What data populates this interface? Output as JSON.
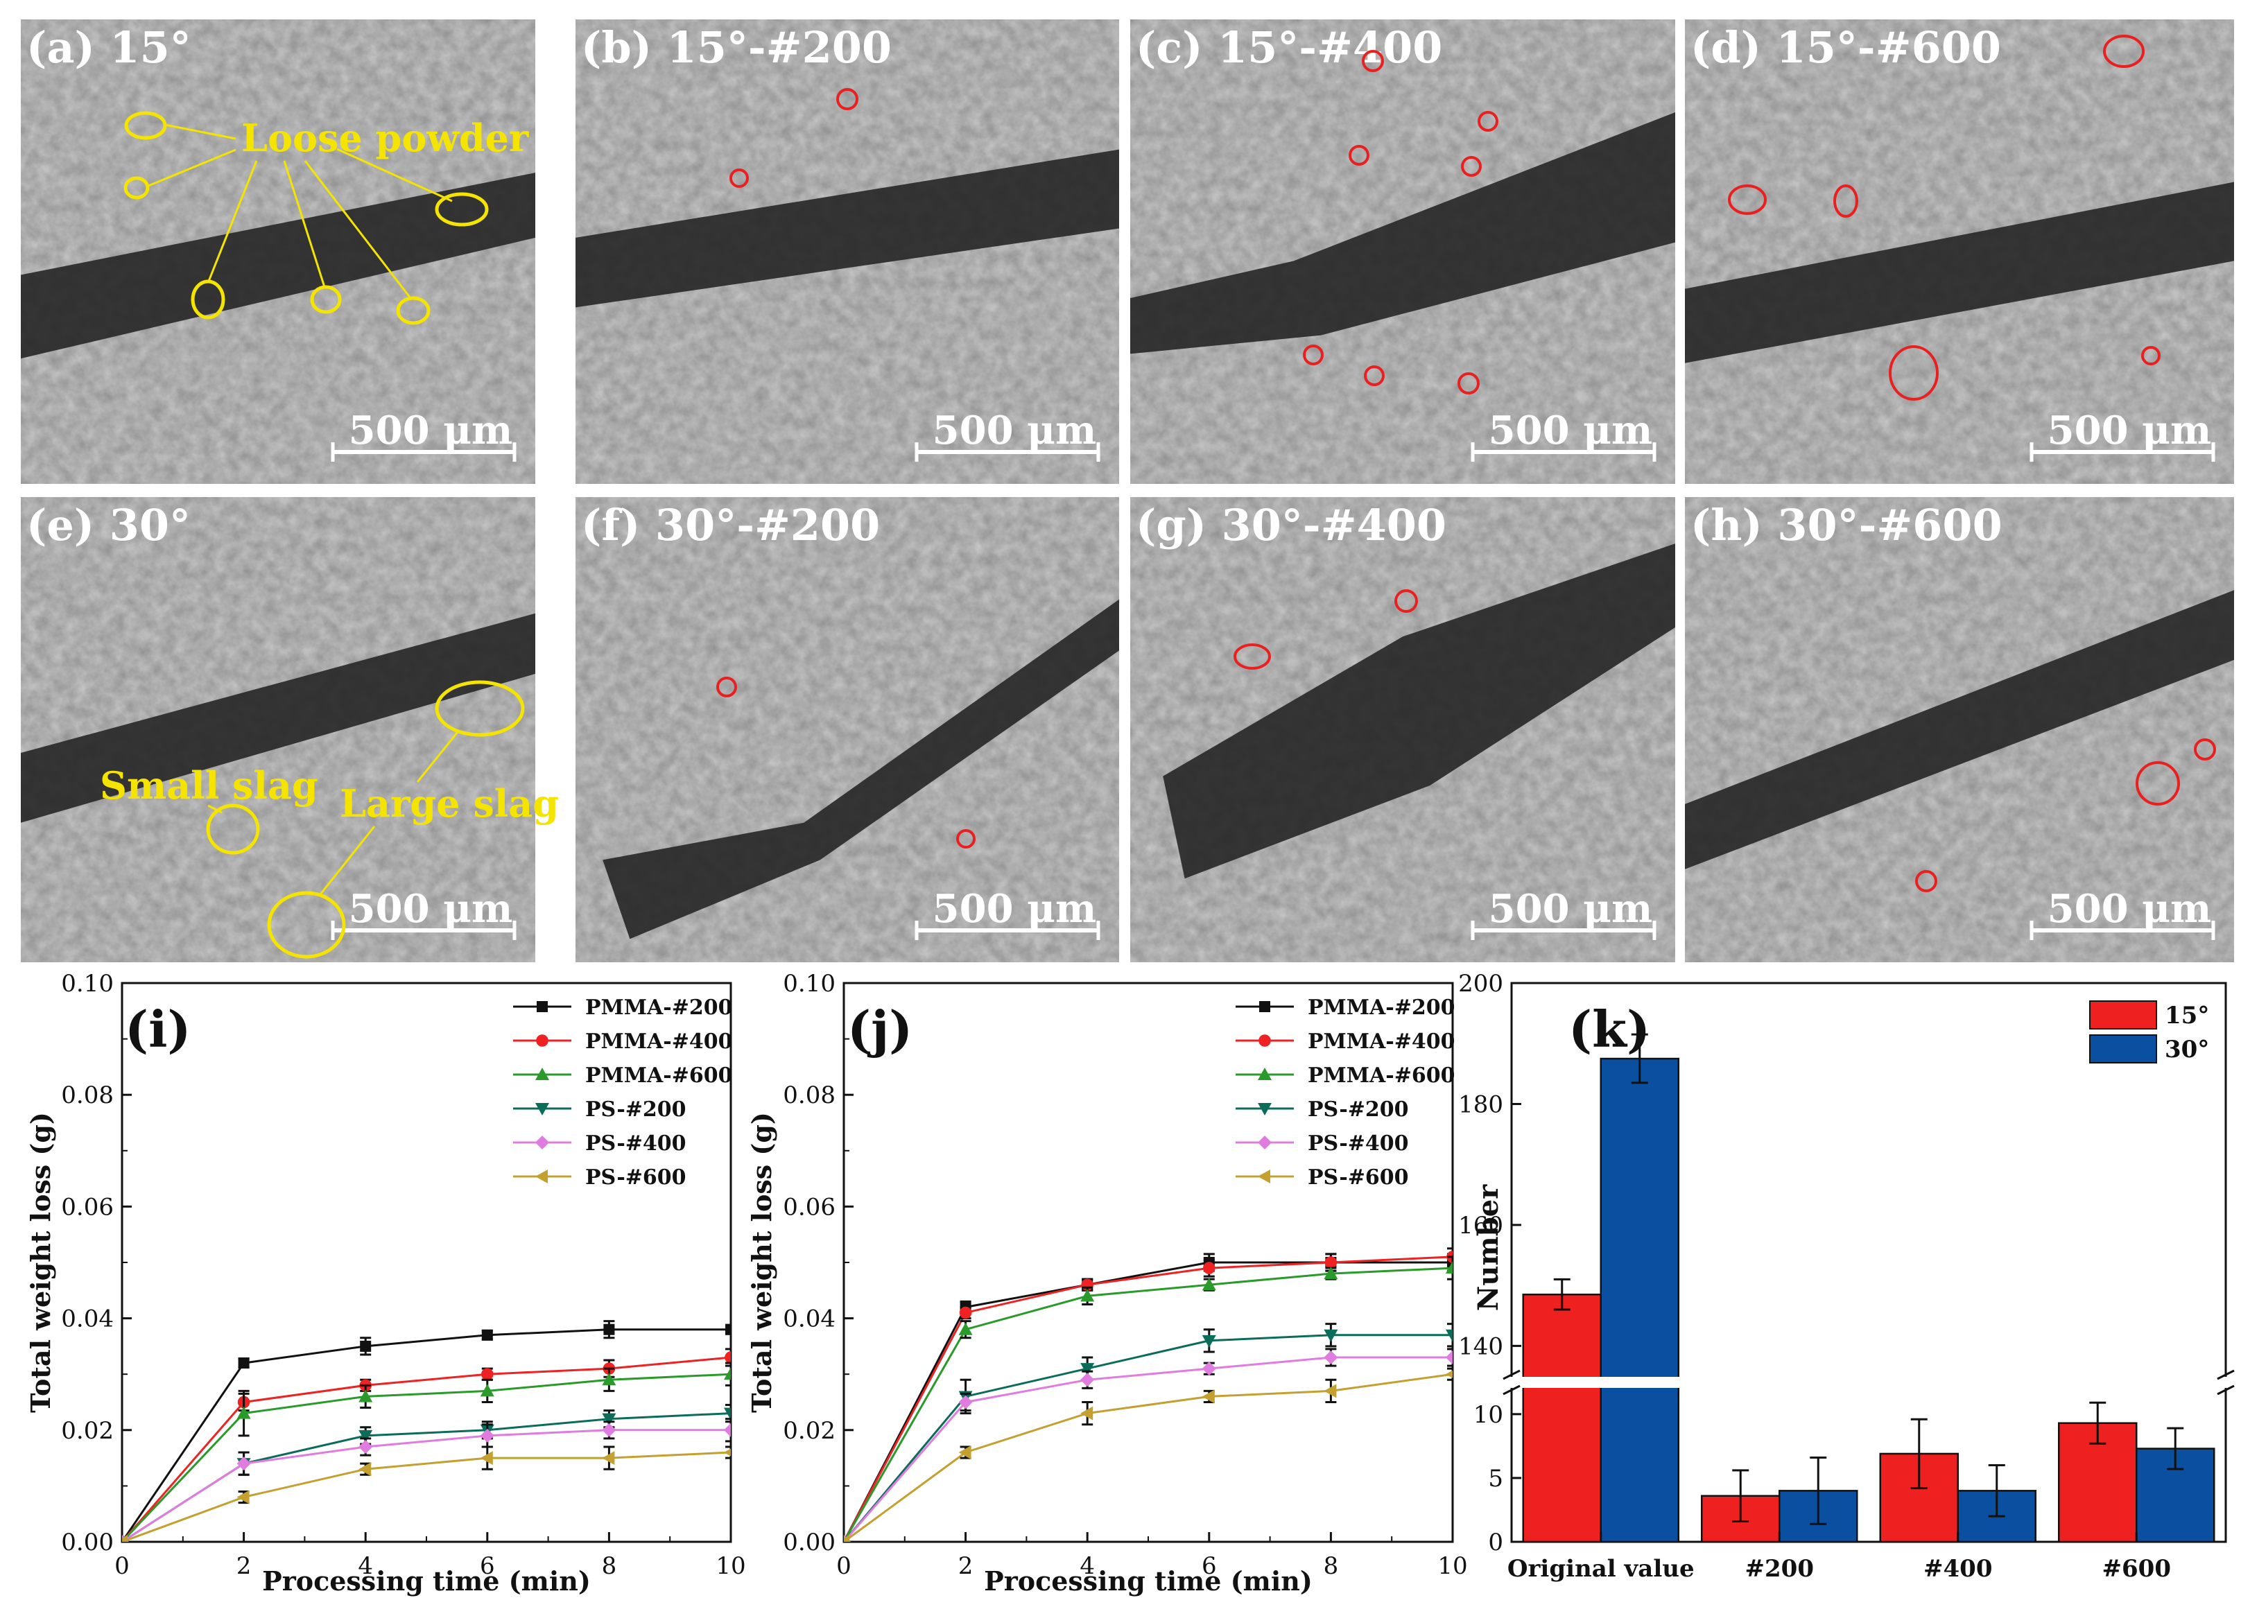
{
  "sem_panels": [
    {
      "label": "(a) 15°"
    },
    {
      "label": "(b) 15°-#200"
    },
    {
      "label": "(c) 15°-#400"
    },
    {
      "label": "(d) 15°-#600"
    },
    {
      "label": "(e) 30°"
    },
    {
      "label": "(f) 30°-#200"
    },
    {
      "label": "(g) 30°-#400"
    },
    {
      "label": "(h) 30°-#600"
    }
  ],
  "scale_bar": "500 μm",
  "annotations": {
    "loose_powder": "Loose powder",
    "small_slag": "Small slag",
    "large_slag": "Large slag"
  },
  "colors": {
    "PMMA-#200": "#111111",
    "PMMA-#400": "#ee2222",
    "PMMA-#600": "#2a9a2a",
    "PS-#200": "#0b6d59",
    "PS-#400": "#e07ce0",
    "PS-#600": "#c4a030",
    "bar_15": "#ee2020",
    "bar_30": "#0a4fa0",
    "highlight_yellow": "#f5e400",
    "highlight_red": "#e82020"
  },
  "chart_data": [
    {
      "panel": "(i)",
      "type": "line",
      "xlabel": "Processing time (min)",
      "ylabel": "Total weight loss (g)",
      "xlim": [
        0,
        10
      ],
      "ylim": [
        0,
        0.1
      ],
      "xticks": [
        "0",
        "2",
        "4",
        "6",
        "8",
        "10"
      ],
      "yticks": [
        "0.00",
        "0.02",
        "0.04",
        "0.06",
        "0.08",
        "0.10"
      ],
      "x": [
        0,
        2,
        4,
        6,
        8,
        10
      ],
      "series": [
        {
          "name": "PMMA-#200",
          "marker": "square",
          "values": [
            0,
            0.032,
            0.035,
            0.037,
            0.038,
            0.038
          ],
          "err": [
            0,
            0.0008,
            0.0015,
            0.0008,
            0.0015,
            0.0008
          ]
        },
        {
          "name": "PMMA-#400",
          "marker": "circle",
          "values": [
            0,
            0.025,
            0.028,
            0.03,
            0.031,
            0.033
          ],
          "err": [
            0,
            0.0015,
            0.001,
            0.001,
            0.0015,
            0.0015
          ]
        },
        {
          "name": "PMMA-#600",
          "marker": "triangle-up",
          "values": [
            0,
            0.023,
            0.026,
            0.027,
            0.029,
            0.03
          ],
          "err": [
            0,
            0.004,
            0.002,
            0.002,
            0.002,
            0.002
          ]
        },
        {
          "name": "PS-#200",
          "marker": "triangle-down",
          "values": [
            0,
            0.014,
            0.019,
            0.02,
            0.022,
            0.023
          ],
          "err": [
            0,
            0.002,
            0.0015,
            0.0015,
            0.0015,
            0.0015
          ]
        },
        {
          "name": "PS-#400",
          "marker": "diamond",
          "values": [
            0,
            0.014,
            0.017,
            0.019,
            0.02,
            0.02
          ],
          "err": [
            0,
            0.002,
            0.0015,
            0.002,
            0.0015,
            0.002
          ]
        },
        {
          "name": "PS-#600",
          "marker": "triangle-left",
          "values": [
            0,
            0.008,
            0.013,
            0.015,
            0.015,
            0.016
          ],
          "err": [
            0,
            0.001,
            0.001,
            0.002,
            0.002,
            0.001
          ]
        }
      ]
    },
    {
      "panel": "(j)",
      "type": "line",
      "xlabel": "Processing time (min)",
      "ylabel": "Total weight loss (g)",
      "xlim": [
        0,
        10
      ],
      "ylim": [
        0,
        0.1
      ],
      "xticks": [
        "0",
        "2",
        "4",
        "6",
        "8",
        "10"
      ],
      "yticks": [
        "0.00",
        "0.02",
        "0.04",
        "0.06",
        "0.08",
        "0.10"
      ],
      "x": [
        0,
        2,
        4,
        6,
        8,
        10
      ],
      "series": [
        {
          "name": "PMMA-#200",
          "marker": "square",
          "values": [
            0,
            0.042,
            0.046,
            0.05,
            0.05,
            0.05
          ],
          "err": [
            0,
            0.001,
            0.001,
            0.0015,
            0.0015,
            0.0015
          ]
        },
        {
          "name": "PMMA-#400",
          "marker": "circle",
          "values": [
            0,
            0.041,
            0.046,
            0.049,
            0.05,
            0.051
          ],
          "err": [
            0,
            0.001,
            0.001,
            0.0015,
            0.0015,
            0.0015
          ]
        },
        {
          "name": "PMMA-#600",
          "marker": "triangle-up",
          "values": [
            0,
            0.038,
            0.044,
            0.046,
            0.048,
            0.049
          ],
          "err": [
            0,
            0.0015,
            0.0015,
            0.001,
            0.001,
            0.002
          ]
        },
        {
          "name": "PS-#200",
          "marker": "triangle-down",
          "values": [
            0,
            0.026,
            0.031,
            0.036,
            0.037,
            0.037
          ],
          "err": [
            0,
            0.003,
            0.002,
            0.002,
            0.002,
            0.002
          ]
        },
        {
          "name": "PS-#400",
          "marker": "diamond",
          "values": [
            0,
            0.025,
            0.029,
            0.031,
            0.033,
            0.033
          ],
          "err": [
            0,
            0.0015,
            0.0015,
            0.001,
            0.0015,
            0.0015
          ]
        },
        {
          "name": "PS-#600",
          "marker": "triangle-left",
          "values": [
            0,
            0.016,
            0.023,
            0.026,
            0.027,
            0.03
          ],
          "err": [
            0,
            0.001,
            0.002,
            0.001,
            0.002,
            0.001
          ]
        }
      ]
    },
    {
      "panel": "(k)",
      "type": "bar",
      "ylabel": "Number",
      "categories": [
        "Original value",
        "#200",
        "#400",
        "#600"
      ],
      "series": [
        {
          "name": "15°",
          "values": [
            148.5,
            3.6,
            6.9,
            9.3
          ],
          "err": [
            2.5,
            2.0,
            2.7,
            1.6
          ]
        },
        {
          "name": "30°",
          "values": [
            187.5,
            4.0,
            4.0,
            7.3
          ],
          "err": [
            4.0,
            2.6,
            2.0,
            1.6
          ]
        }
      ],
      "y_upper_range": [
        135,
        200
      ],
      "y_lower_range": [
        0,
        12
      ],
      "yticks_upper": [
        "140",
        "160",
        "180",
        "200"
      ],
      "yticks_lower": [
        "0",
        "5",
        "10"
      ]
    }
  ]
}
